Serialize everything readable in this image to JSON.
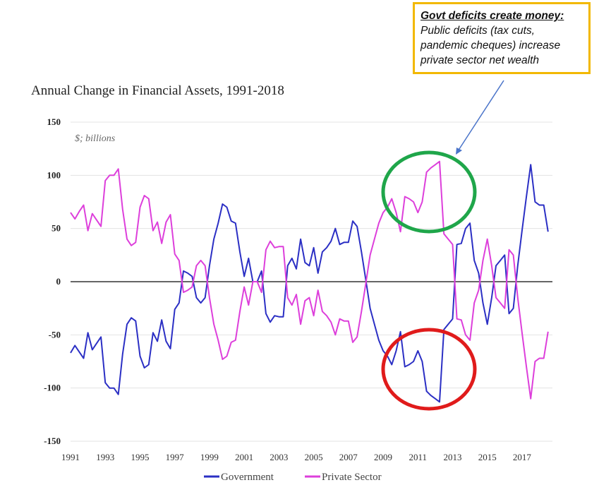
{
  "chart_data": {
    "type": "line",
    "title": "Annual Change in Financial Assets, 1991-2018",
    "unit_label": "$; billions",
    "ylim": [
      -150,
      150
    ],
    "yticks": [
      "150",
      "100",
      "50",
      "0",
      "-50",
      "-100",
      "-150"
    ],
    "xlim": [
      1991,
      2018.75
    ],
    "xticks": [
      "1991",
      "1993",
      "1995",
      "1997",
      "1999",
      "2001",
      "2003",
      "2005",
      "2007",
      "2009",
      "2011",
      "2013",
      "2015",
      "2017"
    ],
    "legend_position": "bottom-center",
    "grid": "horizontal",
    "x": [
      1991,
      1991.25,
      1991.5,
      1991.75,
      1992,
      1992.25,
      1992.5,
      1992.75,
      1993,
      1993.25,
      1993.5,
      1993.75,
      1994,
      1994.25,
      1994.5,
      1994.75,
      1995,
      1995.25,
      1995.5,
      1995.75,
      1996,
      1996.25,
      1996.5,
      1996.75,
      1997,
      1997.25,
      1997.5,
      1997.75,
      1998,
      1998.25,
      1998.5,
      1998.75,
      1999,
      1999.25,
      1999.5,
      1999.75,
      2000,
      2000.25,
      2000.5,
      2000.75,
      2001,
      2001.25,
      2001.5,
      2001.75,
      2002,
      2002.25,
      2002.5,
      2002.75,
      2003,
      2003.25,
      2003.5,
      2003.75,
      2004,
      2004.25,
      2004.5,
      2004.75,
      2005,
      2005.25,
      2005.5,
      2005.75,
      2006,
      2006.25,
      2006.5,
      2006.75,
      2007,
      2007.25,
      2007.5,
      2007.75,
      2008,
      2008.25,
      2008.5,
      2008.75,
      2009,
      2009.25,
      2009.5,
      2009.75,
      2010,
      2010.25,
      2010.5,
      2010.75,
      2011,
      2011.25,
      2011.5,
      2011.75,
      2012,
      2012.25,
      2012.5,
      2012.75,
      2013,
      2013.25,
      2013.5,
      2013.75,
      2014,
      2014.25,
      2014.5,
      2014.75,
      2015,
      2015.25,
      2015.5,
      2015.75,
      2016,
      2016.25,
      2016.5,
      2016.75,
      2017,
      2017.25,
      2017.5,
      2017.75,
      2018,
      2018.25,
      2018.5
    ],
    "series": [
      {
        "name": "Government",
        "color": "#2b2fc4",
        "values": [
          -67,
          -60,
          -66,
          -72,
          -48,
          -64,
          -58,
          -52,
          -95,
          -100,
          -100,
          -106,
          -68,
          -40,
          -34,
          -37,
          -70,
          -81,
          -78,
          -48,
          -56,
          -36,
          -56,
          -63,
          -26,
          -20,
          10,
          8,
          5,
          -15,
          -20,
          -15,
          15,
          40,
          55,
          73,
          70,
          57,
          55,
          28,
          5,
          22,
          0,
          0,
          10,
          -30,
          -38,
          -32,
          -33,
          -33,
          15,
          22,
          12,
          40,
          18,
          15,
          32,
          8,
          28,
          32,
          38,
          50,
          35,
          37,
          37,
          57,
          52,
          28,
          2,
          -25,
          -40,
          -55,
          -65,
          -70,
          -78,
          -65,
          -47,
          -80,
          -78,
          -75,
          -65,
          -75,
          -103,
          -107,
          -110,
          -113,
          -45,
          -40,
          -35,
          35,
          36,
          50,
          55,
          20,
          8,
          -20,
          -40,
          -15,
          15,
          20,
          25,
          -30,
          -25,
          15,
          48,
          80,
          110,
          75,
          72,
          72,
          47
        ]
      },
      {
        "name": "Private Sector",
        "color": "#dd3fdb",
        "values": [
          65,
          59,
          66,
          72,
          48,
          64,
          58,
          52,
          95,
          100,
          100,
          106,
          68,
          40,
          34,
          37,
          70,
          81,
          78,
          48,
          56,
          36,
          56,
          63,
          26,
          20,
          -10,
          -8,
          -5,
          15,
          20,
          15,
          -15,
          -40,
          -55,
          -73,
          -70,
          -57,
          -55,
          -28,
          -5,
          -22,
          0,
          0,
          -10,
          30,
          38,
          32,
          33,
          33,
          -15,
          -22,
          -12,
          -40,
          -18,
          -15,
          -32,
          -8,
          -28,
          -32,
          -38,
          -50,
          -35,
          -37,
          -37,
          -57,
          -52,
          -28,
          -2,
          25,
          40,
          55,
          65,
          70,
          78,
          65,
          47,
          80,
          78,
          75,
          65,
          75,
          103,
          107,
          110,
          113,
          45,
          40,
          35,
          -35,
          -36,
          -50,
          -55,
          -20,
          -8,
          20,
          40,
          15,
          -15,
          -20,
          -25,
          30,
          25,
          -15,
          -48,
          -80,
          -110,
          -75,
          -72,
          -72,
          -47
        ]
      }
    ]
  },
  "annotations": {
    "callout_title": "Govt deficits create money:",
    "callout_line1": "Public deficits (tax cuts,",
    "callout_line2": "pandemic cheques) increase",
    "callout_line3": "private sector net wealth",
    "green_circle_color": "#1fa64a",
    "red_circle_color": "#e01b1b",
    "callout_border_color": "#f2b800",
    "arrow_color": "#4a74c9"
  },
  "legend": {
    "government_label": "Government",
    "private_label": "Private Sector"
  }
}
